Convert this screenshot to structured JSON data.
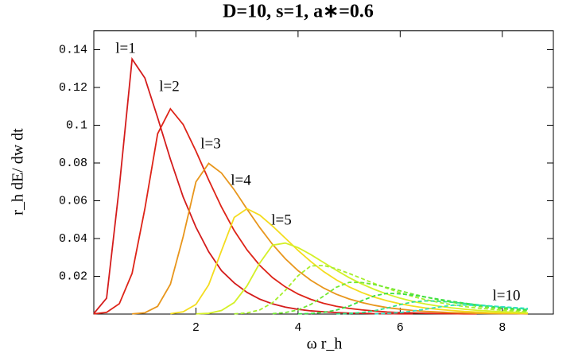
{
  "chart_data": {
    "type": "line",
    "title": "D=10, s=1, a∗=0.6",
    "x_label": "ω r_h",
    "y_label": "r_h dE/ dw dt",
    "x": [
      0,
      0.25,
      0.5,
      0.75,
      1,
      1.25,
      1.5,
      1.75,
      2,
      2.25,
      2.5,
      2.75,
      3,
      3.25,
      3.5,
      3.75,
      4,
      4.25,
      4.5,
      4.75,
      5,
      5.25,
      5.5,
      5.75,
      6,
      6.25,
      6.5,
      6.75,
      7,
      7.25,
      7.5,
      7.75,
      8,
      8.25,
      8.5
    ],
    "xlim": [
      0,
      9
    ],
    "xticks": [
      2,
      4,
      6,
      8
    ],
    "ylim": [
      0,
      0.15
    ],
    "yticks": [
      0.02,
      0.04,
      0.06,
      0.08,
      0.1,
      0.12,
      0.14
    ],
    "series": [
      {
        "name": "l=1",
        "color": "#d41c1c",
        "dash": false,
        "values": [
          0.0003,
          0.0084,
          0.0675,
          0.135,
          0.125,
          0.104,
          0.082,
          0.062,
          0.046,
          0.033,
          0.023,
          0.0165,
          0.0115,
          0.0079,
          0.0054,
          0.0037,
          0.0025,
          0.0017,
          0.0012,
          0.0008,
          0.0005,
          0.0004,
          0.0002,
          0.0002,
          0.0001,
          0.0001,
          null,
          null,
          null,
          null,
          null,
          null,
          null,
          null,
          null
        ]
      },
      {
        "name": "l=2",
        "color": "#de2418",
        "dash": false,
        "values": [
          0.0001,
          0.0009,
          0.0055,
          0.0216,
          0.0558,
          0.0955,
          0.1087,
          0.1004,
          0.0863,
          0.071,
          0.0567,
          0.0442,
          0.034,
          0.0258,
          0.0193,
          0.0144,
          0.0106,
          0.0078,
          0.0057,
          0.0041,
          0.003,
          0.0022,
          0.0016,
          0.0011,
          0.0008,
          0.0006,
          0.0004,
          0.0003,
          0.0002,
          0.0001,
          0.0001,
          null,
          null,
          null,
          null
        ]
      },
      {
        "name": "l=3",
        "color": "#e8961c",
        "dash": false,
        "values": [
          null,
          null,
          null,
          0.0001,
          0.0007,
          0.0041,
          0.0158,
          0.041,
          0.07,
          0.0798,
          0.0747,
          0.0658,
          0.0556,
          0.0458,
          0.0369,
          0.0293,
          0.023,
          0.0179,
          0.0138,
          0.0105,
          0.008,
          0.0061,
          0.0046,
          0.0034,
          0.0026,
          0.0019,
          0.0014,
          0.0011,
          0.0008,
          0.0006,
          0.0004,
          0.0003,
          0.0002,
          0.0002,
          0.0001
        ]
      },
      {
        "name": "l=4",
        "color": "#f4dc1e",
        "dash": false,
        "values": [
          null,
          null,
          null,
          null,
          null,
          null,
          0.0002,
          0.0012,
          0.0051,
          0.0155,
          0.0335,
          0.0512,
          0.0558,
          0.0524,
          0.0466,
          0.0402,
          0.0337,
          0.0278,
          0.0225,
          0.0181,
          0.0144,
          0.0114,
          0.0089,
          0.007,
          0.0054,
          0.0042,
          0.0032,
          0.0025,
          0.0019,
          0.0014,
          0.0011,
          0.0008,
          0.0006,
          0.0005,
          0.0004
        ]
      },
      {
        "name": "l=5",
        "color": "#d4f028",
        "dash": false,
        "values": [
          null,
          null,
          null,
          null,
          null,
          null,
          null,
          null,
          0.0001,
          0.0004,
          0.0019,
          0.0061,
          0.0149,
          0.027,
          0.0365,
          0.0376,
          0.0352,
          0.0315,
          0.0273,
          0.0232,
          0.0193,
          0.0159,
          0.013,
          0.0105,
          0.0084,
          0.0067,
          0.0053,
          0.0042,
          0.0033,
          0.0026,
          0.002,
          0.0016,
          0.0012,
          0.001,
          0.0007
        ]
      },
      {
        "color": "#a6ee2c",
        "dash": true,
        "values": [
          null,
          null,
          null,
          null,
          null,
          null,
          null,
          null,
          null,
          null,
          null,
          0.0001,
          0.0006,
          0.0022,
          0.006,
          0.0125,
          0.0203,
          0.0255,
          0.0257,
          0.024,
          0.0215,
          0.0188,
          0.0161,
          0.0136,
          0.0113,
          0.0093,
          0.0076,
          0.0062,
          0.005,
          0.004,
          0.0032,
          0.0026,
          0.002,
          0.0016,
          0.0013
        ]
      },
      {
        "color": "#72e832",
        "dash": true,
        "values": [
          null,
          null,
          null,
          null,
          null,
          null,
          null,
          null,
          null,
          null,
          null,
          null,
          null,
          null,
          0.0002,
          0.0008,
          0.0022,
          0.0051,
          0.0095,
          0.0142,
          0.0168,
          0.0167,
          0.0156,
          0.014,
          0.0123,
          0.0106,
          0.009,
          0.0075,
          0.0063,
          0.0052,
          0.0042,
          0.0034,
          0.0028,
          0.0022,
          0.0018
        ]
      },
      {
        "color": "#3ce044",
        "dash": true,
        "values": [
          null,
          null,
          null,
          null,
          null,
          null,
          null,
          null,
          null,
          null,
          null,
          null,
          null,
          null,
          null,
          null,
          0.0001,
          0.0003,
          0.0009,
          0.0021,
          0.0042,
          0.0071,
          0.0097,
          0.011,
          0.0107,
          0.01,
          0.009,
          0.0079,
          0.0068,
          0.0058,
          0.0049,
          0.0041,
          0.0034,
          0.0028,
          0.0023
        ]
      },
      {
        "color": "#2ee088",
        "dash": true,
        "values": [
          null,
          null,
          null,
          null,
          null,
          null,
          null,
          null,
          null,
          null,
          null,
          null,
          null,
          null,
          null,
          null,
          null,
          null,
          null,
          0.0001,
          0.0003,
          0.0008,
          0.0018,
          0.0032,
          0.005,
          0.0064,
          0.007,
          0.0068,
          0.0063,
          0.0057,
          0.005,
          0.0043,
          0.0037,
          0.0032,
          0.0026
        ]
      },
      {
        "name": "l=10",
        "color": "#30e0c4",
        "dash": true,
        "values": [
          null,
          null,
          null,
          null,
          null,
          null,
          null,
          null,
          null,
          null,
          null,
          null,
          null,
          null,
          null,
          null,
          null,
          null,
          null,
          null,
          null,
          null,
          0.0001,
          0.0004,
          0.0008,
          0.0016,
          0.0026,
          0.0037,
          0.0046,
          0.0048,
          0.0046,
          0.0043,
          0.0039,
          0.0034,
          0.003
        ]
      }
    ]
  }
}
